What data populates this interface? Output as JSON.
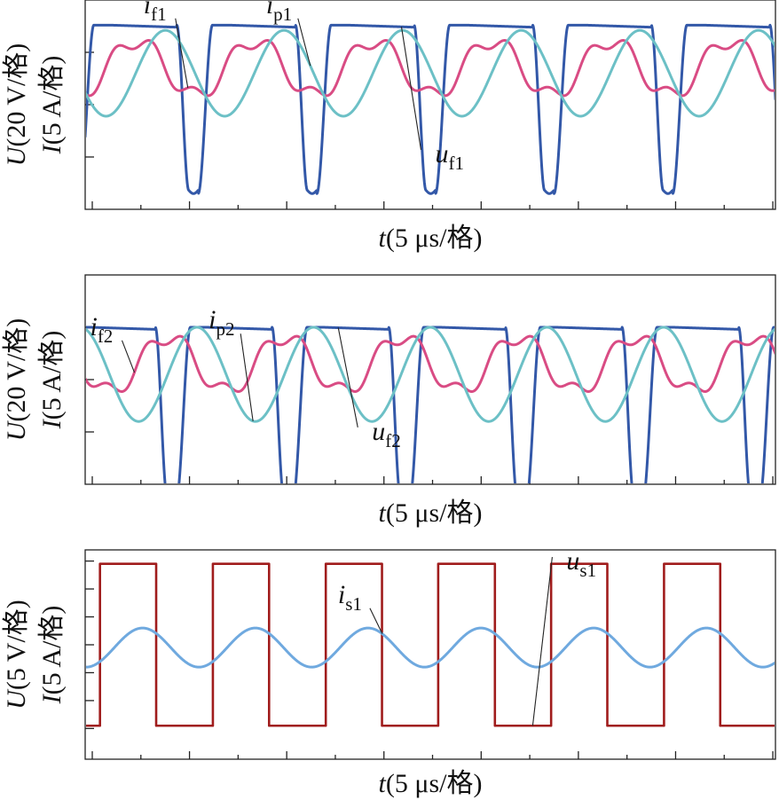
{
  "colors": {
    "u_f": "#3358A8",
    "i_f": "#D94C84",
    "i_p": "#6CC0C6",
    "u_s": "#A01C1C",
    "i_s": "#6FA9DF",
    "axes": "#222222"
  },
  "chart_data": [
    {
      "type": "line",
      "xlabel": {
        "sym": "t",
        "rest": "(5 μs/格)"
      },
      "ylabel_u": {
        "sym": "U",
        "rest": "(20 V/格)"
      },
      "ylabel_i": {
        "sym": "I",
        "rest": "(5 A/格)"
      },
      "xlim_div": [
        0,
        7.1
      ],
      "ylim_div": [
        -2.5,
        1.5
      ],
      "x_major_div": [
        0,
        1,
        2,
        3,
        4,
        5,
        6,
        7
      ],
      "x_minor_div": [
        0.5,
        1.5,
        2.5,
        3.5,
        4.5,
        5.5,
        6.5
      ],
      "y_major_div": [
        -1.5,
        -0.5,
        0.5
      ],
      "period_div": 1.22,
      "series": [
        {
          "name": "u_f1",
          "base": "u",
          "sub": "f1",
          "shape": "trapezoid-with-dip",
          "color_key": "u_f",
          "offset_div": 0.26,
          "high_div": 1.02,
          "low_div": -2.2,
          "label_x_div": 3.6,
          "label_y_div": -1.6
        },
        {
          "name": "i_f1",
          "base": "i",
          "sub": "f1",
          "shape": "sine-with-harmonic",
          "color_key": "i_f",
          "offset_div": 0.22,
          "amplitude_div": 0.62,
          "center_div": 0.2,
          "label_x_div": 0.6,
          "label_y_div": 1.25
        },
        {
          "name": "i_p1",
          "base": "i",
          "sub": "p1",
          "shape": "sine",
          "color_key": "i_p",
          "offset_div": 0.52,
          "amplitude_div": 0.82,
          "center_div": 0.1,
          "label_x_div": 1.86,
          "label_y_div": 1.25
        }
      ]
    },
    {
      "type": "line",
      "xlabel": {
        "sym": "t",
        "rest": "(5 μs/格)"
      },
      "ylabel_u": {
        "sym": "U",
        "rest": "(20 V/格)"
      },
      "ylabel_i": {
        "sym": "I",
        "rest": "(5 A/格)"
      },
      "xlim_div": [
        0,
        7.1
      ],
      "ylim_div": [
        -2.0,
        2.0
      ],
      "x_major_div": [
        0,
        1,
        2,
        3,
        4,
        5,
        6,
        7
      ],
      "x_minor_div": [
        0.5,
        1.5,
        2.5,
        3.5,
        4.5,
        5.5,
        6.5
      ],
      "y_major_div": [
        -1.0,
        0.0,
        1.0
      ],
      "period_div": 1.2,
      "series": [
        {
          "name": "u_f2",
          "base": "u",
          "sub": "f2",
          "shape": "trapezoid-with-dip",
          "color_key": "u_f",
          "offset_div": 0.05,
          "high_div": 1.0,
          "low_div": -2.3,
          "label_x_div": 2.95,
          "label_y_div": -1.15
        },
        {
          "name": "i_f2",
          "base": "i",
          "sub": "f2",
          "shape": "sine-with-harmonic",
          "color_key": "i_f",
          "offset_div": 0.55,
          "amplitude_div": 0.62,
          "center_div": 0.3,
          "label_x_div": 0.05,
          "label_y_div": 0.85
        },
        {
          "name": "i_p2",
          "base": "i",
          "sub": "p2",
          "shape": "sine",
          "color_key": "i_p",
          "offset_div": 0.85,
          "amplitude_div": 0.9,
          "center_div": 0.1,
          "label_x_div": 1.27,
          "label_y_div": 0.98
        }
      ]
    },
    {
      "type": "line",
      "xlabel": {
        "sym": "t",
        "rest": "(5 μs/格)"
      },
      "ylabel_u": {
        "sym": "U",
        "rest": "(5 V/格)"
      },
      "ylabel_i": {
        "sym": "I",
        "rest": "(5 A/格)"
      },
      "xlim_div": [
        0,
        7.1
      ],
      "ylim_div": [
        -4.1,
        3.4
      ],
      "x_major_div": [
        0,
        1,
        2,
        3,
        4,
        5,
        6,
        7
      ],
      "x_minor_div": [
        0.5,
        1.5,
        2.5,
        3.5,
        4.5,
        5.5,
        6.5
      ],
      "y_major_div": [
        -3,
        -2,
        -1,
        0,
        1,
        2,
        3
      ],
      "period_div": 1.16,
      "series": [
        {
          "name": "u_s1",
          "base": "u",
          "sub": "s1",
          "shape": "square",
          "color_key": "u_s",
          "offset_div": 0.15,
          "high_div": 2.9,
          "low_div": -2.9,
          "duty": 0.5,
          "label_x_div": 4.95,
          "label_y_div": 2.7
        },
        {
          "name": "i_s1",
          "base": "i",
          "sub": "s1",
          "shape": "sine",
          "color_key": "i_s",
          "offset_div": 0.3,
          "amplitude_div": 0.7,
          "center_div": -0.1,
          "label_x_div": 2.6,
          "label_y_div": 1.5
        }
      ]
    }
  ]
}
